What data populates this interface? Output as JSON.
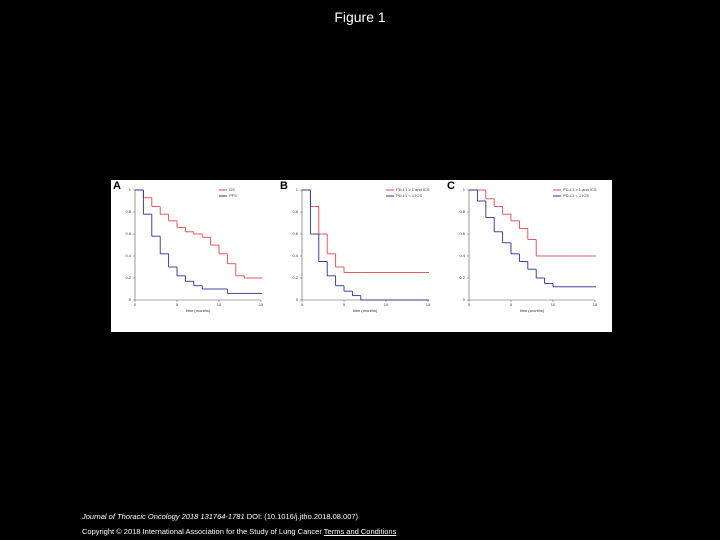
{
  "title": "Figure 1",
  "footer": {
    "journal": "Journal of Thoracic Oncology 2018 131764-1781",
    "citation": "DOI: (10.1016/j.jtho.2018.08.007)",
    "copyright": "Copyright © 2018 International Association for the Study of Lung Cancer",
    "link": "Terms and Conditions"
  },
  "chart_data": [
    {
      "type": "line",
      "step": true,
      "panel": "A",
      "xlabel": "time (months)",
      "x": [
        0,
        1,
        2,
        3,
        4,
        5,
        6,
        7,
        8,
        9,
        10,
        11,
        12,
        13,
        14,
        15
      ],
      "xlim": [
        0,
        15
      ],
      "xticks": [
        0,
        5,
        10,
        15
      ],
      "ylim": [
        0,
        1
      ],
      "yticks": [
        0,
        0.2,
        0.4,
        0.6,
        0.8,
        1
      ],
      "series": [
        {
          "name": "OS",
          "color": "#e8474a",
          "values": [
            1,
            0.93,
            0.85,
            0.78,
            0.72,
            0.66,
            0.62,
            0.6,
            0.57,
            0.5,
            0.42,
            0.33,
            0.22,
            0.2,
            0.2,
            0.2
          ]
        },
        {
          "name": "PFS",
          "color": "#2b2f9e",
          "values": [
            1,
            0.78,
            0.58,
            0.42,
            0.3,
            0.22,
            0.17,
            0.13,
            0.1,
            0.1,
            0.1,
            0.06,
            0.06,
            0.06,
            0.06,
            0.06
          ]
        }
      ]
    },
    {
      "type": "line",
      "step": true,
      "panel": "B",
      "xlabel": "time (months)",
      "x": [
        0,
        1,
        2,
        3,
        4,
        5,
        6,
        7,
        8,
        9,
        10,
        11,
        12,
        13,
        14,
        15
      ],
      "xlim": [
        0,
        15
      ],
      "xticks": [
        0,
        5,
        10,
        15
      ],
      "ylim": [
        0,
        1
      ],
      "yticks": [
        0,
        0.2,
        0.4,
        0.6,
        0.8,
        1
      ],
      "series": [
        {
          "name": "PD-L1 ≥ 1 and ICS",
          "color": "#e8474a",
          "values": [
            1,
            0.85,
            0.6,
            0.42,
            0.3,
            0.25,
            0.25,
            0.25,
            0.25,
            0.25,
            0.25,
            0.25,
            0.25,
            0.25,
            0.25,
            0.25
          ]
        },
        {
          "name": "PD-L1 < 1 ICS",
          "color": "#2b2f9e",
          "values": [
            1,
            0.6,
            0.35,
            0.22,
            0.13,
            0.08,
            0.04,
            0,
            0,
            0,
            0,
            0,
            0,
            0,
            0,
            0
          ]
        }
      ]
    },
    {
      "type": "line",
      "step": true,
      "panel": "C",
      "xlabel": "time (months)",
      "x": [
        0,
        1,
        2,
        3,
        4,
        5,
        6,
        7,
        8,
        9,
        10,
        11,
        12,
        13,
        14,
        15
      ],
      "xlim": [
        0,
        15
      ],
      "xticks": [
        0,
        5,
        10,
        15
      ],
      "ylim": [
        0,
        1
      ],
      "yticks": [
        0,
        0.2,
        0.4,
        0.6,
        0.8,
        1
      ],
      "series": [
        {
          "name": "PD-L1 ≥ 1 and ICS",
          "color": "#e8474a",
          "values": [
            1,
            1,
            0.92,
            0.85,
            0.78,
            0.72,
            0.65,
            0.55,
            0.4,
            0.4,
            0.4,
            0.4,
            0.4,
            0.4,
            0.4,
            0.4
          ]
        },
        {
          "name": "PD-L1 < 1 ICS",
          "color": "#2b2f9e",
          "values": [
            1,
            0.9,
            0.75,
            0.62,
            0.52,
            0.42,
            0.35,
            0.28,
            0.2,
            0.15,
            0.12,
            0.12,
            0.12,
            0.12,
            0.12,
            0.12
          ]
        }
      ]
    }
  ]
}
